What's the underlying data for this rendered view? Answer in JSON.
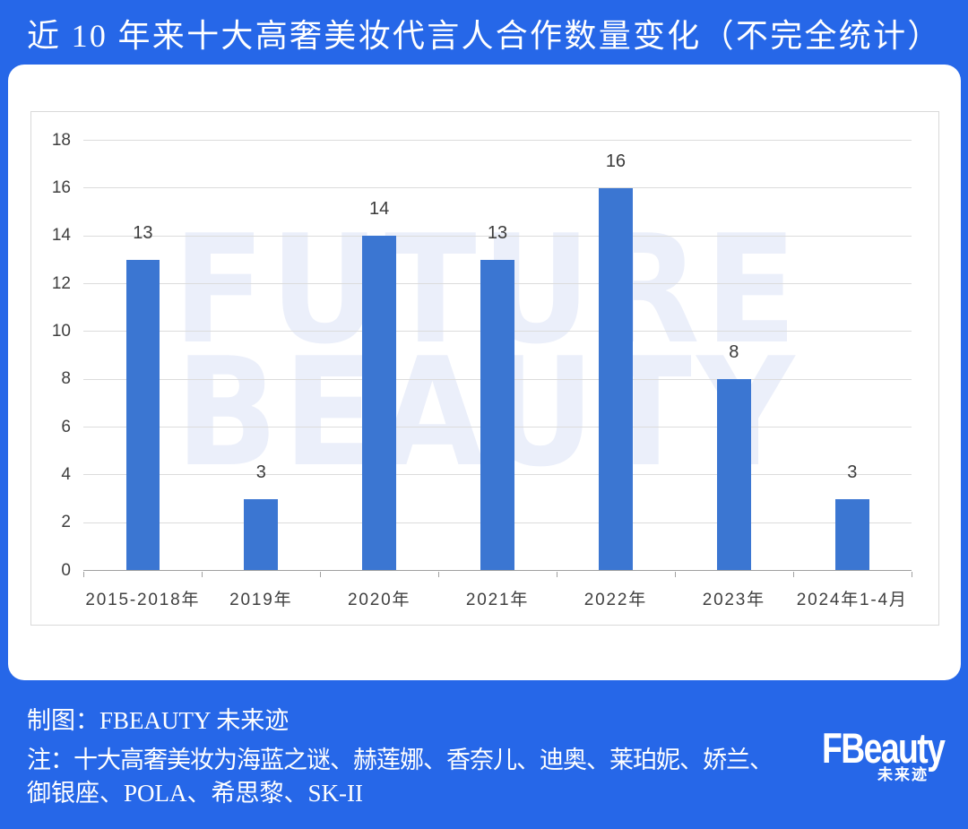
{
  "page": {
    "title": "近 10 年来十大高奢美妆代言人合作数量变化（不完全统计）",
    "background_color": "#2667e8"
  },
  "chart_data": {
    "type": "bar",
    "title": "",
    "categories": [
      "2015-2018年",
      "2019年",
      "2020年",
      "2021年",
      "2022年",
      "2023年",
      "2024年1-4月"
    ],
    "values": [
      13,
      3,
      14,
      13,
      16,
      8,
      3
    ],
    "xlabel": "",
    "ylabel": "",
    "ylim": [
      0,
      18
    ],
    "ytick_step": 2,
    "grid": true,
    "legend": false,
    "bar_color": "#3b76d2",
    "watermark_lines": [
      "FUTURE",
      "BEAUTY"
    ],
    "watermark_color": "#ebeffa"
  },
  "footer": {
    "credit": "制图：FBEAUTY 未来迹",
    "note_line1": "注：十大高奢美妆为海蓝之谜、赫莲娜、香奈儿、迪奥、莱珀妮、娇兰、",
    "note_line2": "御银座、POLA、希思黎、SK-II",
    "logo_text": "FBeauty",
    "logo_sub": "未来迹"
  }
}
